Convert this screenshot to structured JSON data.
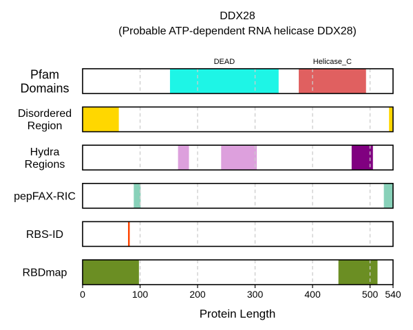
{
  "chart_data": {
    "type": "bar",
    "title_line1": "DDX28",
    "title_line2": "(Probable ATP-dependent RNA helicase DDX28)",
    "xlabel": "Protein Length",
    "xlim": [
      0,
      540
    ],
    "xticks": [
      0,
      100,
      200,
      300,
      400,
      500,
      540
    ],
    "tick_labels": [
      "0",
      "100",
      "200",
      "300",
      "400",
      "500",
      "540"
    ],
    "grid_lines": [
      100,
      200,
      300,
      400,
      500
    ],
    "tracks": [
      {
        "label_lines": [
          "Pfam",
          "Domains"
        ],
        "label_size": "large",
        "segments": [
          {
            "start": 152,
            "end": 341,
            "color": "#1ef5e6",
            "label": "DEAD"
          },
          {
            "start": 376,
            "end": 493,
            "color": "#e06060",
            "label": "Helicase_C"
          }
        ]
      },
      {
        "label_lines": [
          "Disordered",
          "Region"
        ],
        "label_size": "normal",
        "segments": [
          {
            "start": 0,
            "end": 63,
            "color": "#ffd700"
          },
          {
            "start": 533,
            "end": 540,
            "color": "#ffd700"
          }
        ]
      },
      {
        "label_lines": [
          "Hydra",
          "Regions"
        ],
        "label_size": "normal",
        "segments": [
          {
            "start": 166,
            "end": 185,
            "color": "#dda0dd"
          },
          {
            "start": 241,
            "end": 303,
            "color": "#dda0dd"
          },
          {
            "start": 468,
            "end": 505,
            "color": "#800080"
          }
        ]
      },
      {
        "label_lines": [
          "pepFAX-RIC"
        ],
        "label_size": "normal",
        "segments": [
          {
            "start": 89,
            "end": 101,
            "color": "#88d1b9"
          },
          {
            "start": 524,
            "end": 540,
            "color": "#88d1b9"
          }
        ]
      },
      {
        "label_lines": [
          "RBS-ID"
        ],
        "label_size": "normal",
        "segments": [
          {
            "start": 79,
            "end": 82,
            "color": "#ff4500"
          }
        ]
      },
      {
        "label_lines": [
          "RBDmap"
        ],
        "label_size": "normal",
        "segments": [
          {
            "start": 0,
            "end": 98,
            "color": "#6b8e23"
          },
          {
            "start": 445,
            "end": 513,
            "color": "#6b8e23"
          }
        ]
      }
    ]
  }
}
